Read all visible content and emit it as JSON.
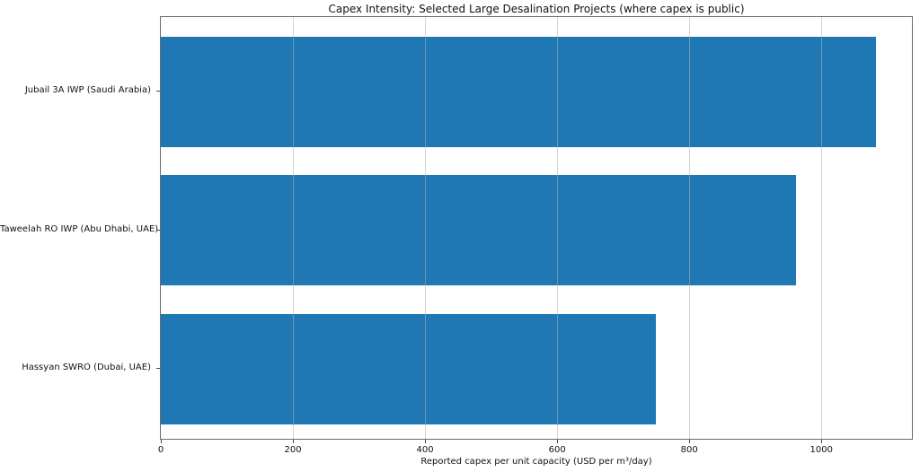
{
  "chart_data": {
    "type": "bar",
    "orientation": "horizontal",
    "title": "Capex Intensity: Selected Large Desalination Projects (where capex is public)",
    "xlabel": "Reported capex per unit capacity (USD per m³/day)",
    "ylabel": "",
    "categories": [
      "Jubail 3A IWP (Saudi Arabia)",
      "Taweelah RO IWP (Abu Dhabi, UAE)",
      "Hassyan SWRO (Dubai, UAE)"
    ],
    "values": [
      1083,
      962,
      749
    ],
    "xticks": [
      0,
      200,
      400,
      600,
      800,
      1000
    ],
    "xlim": [
      0,
      1137
    ],
    "grid": true,
    "grid_axis": "x",
    "legend": false,
    "bar_color": "#1f77b4",
    "background_color": "#ffffff"
  }
}
